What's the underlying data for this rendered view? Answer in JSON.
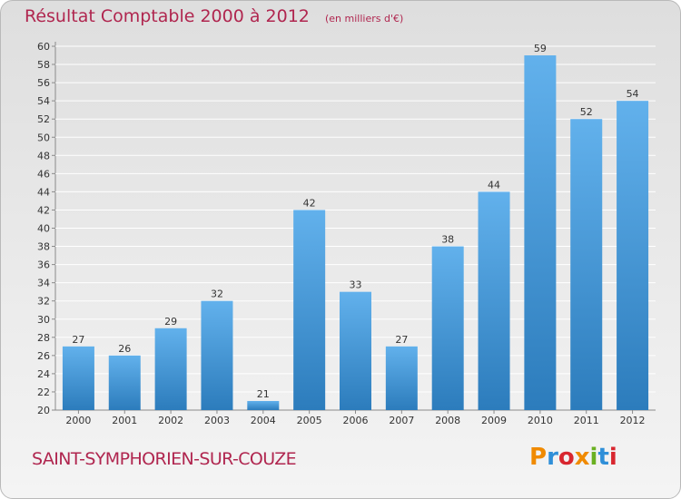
{
  "header": {
    "title": "Résultat Comptable 2000 à 2012",
    "subtitle": "(en milliers d'€)"
  },
  "footer": {
    "commune": "SAINT-SYMPHORIEN-SUR-COUZE",
    "logo_text": "Proxiti",
    "logo_colors": [
      "#f08a00",
      "#2f8fd8",
      "#d8262f",
      "#f08a00",
      "#6ab021",
      "#2f8fd8",
      "#d8262f"
    ]
  },
  "colors": {
    "bar_top": "#62b1ec",
    "bar_bottom": "#2c7cbc",
    "title": "#b0264f",
    "grid": "#ffffff"
  },
  "chart_data": {
    "type": "bar",
    "categories": [
      "2000",
      "2001",
      "2002",
      "2003",
      "2004",
      "2005",
      "2006",
      "2007",
      "2008",
      "2009",
      "2010",
      "2011",
      "2012"
    ],
    "values": [
      27,
      26,
      29,
      32,
      21,
      42,
      33,
      27,
      38,
      44,
      59,
      52,
      54
    ],
    "ylim": [
      20,
      60
    ],
    "ytick_step": 2,
    "grid": true,
    "data_labels": true,
    "xlabel": "",
    "ylabel": ""
  }
}
